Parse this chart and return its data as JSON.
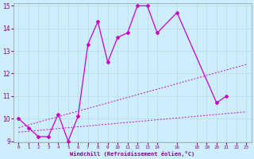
{
  "xlabel": "Windchill (Refroidissement éolien,°C)",
  "background_color": "#cceeff",
  "grid_color": "#b8ddd8",
  "line_color": "#cc00cc",
  "series1_x": [
    0,
    1,
    2,
    3,
    4,
    5,
    6,
    7,
    8,
    9,
    10,
    11,
    12,
    13,
    14,
    16,
    20,
    21
  ],
  "series1_y": [
    10.0,
    9.6,
    9.2,
    9.2,
    10.2,
    9.0,
    10.1,
    13.3,
    14.3,
    12.5,
    13.6,
    13.8,
    15.0,
    15.0,
    13.8,
    14.7,
    10.7,
    11.0
  ],
  "series2_x": [
    0,
    23
  ],
  "series2_y": [
    9.4,
    10.3
  ],
  "series3_x": [
    0,
    23
  ],
  "series3_y": [
    9.6,
    12.4
  ],
  "ylim": [
    9.0,
    15.0
  ],
  "xlim": [
    -0.5,
    23.5
  ],
  "yticks": [
    9,
    10,
    11,
    12,
    13,
    14,
    15
  ],
  "xtick_positions": [
    0,
    1,
    2,
    3,
    4,
    5,
    6,
    7,
    8,
    9,
    10,
    11,
    12,
    13,
    14,
    16,
    18,
    19,
    20,
    21,
    22,
    23
  ],
  "xtick_labels": [
    "0",
    "1",
    "2",
    "3",
    "4",
    "5",
    "6",
    "7",
    "8",
    "9",
    "10",
    "11",
    "12",
    "13",
    "14",
    "16",
    "18",
    "19",
    "20",
    "21",
    "22",
    "23"
  ]
}
